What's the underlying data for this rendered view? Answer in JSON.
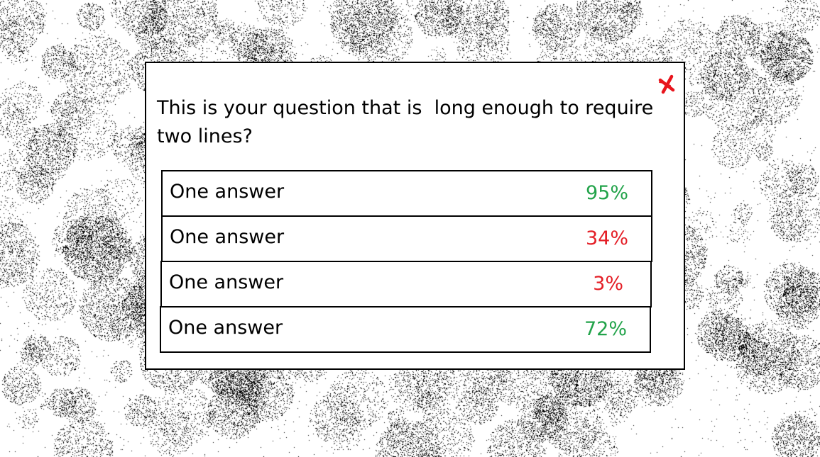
{
  "dialog": {
    "question": "This is your question that is  long enough to require\ntwo lines?",
    "close_icon": "close-x-icon",
    "close_color": "#e8141c"
  },
  "answers": [
    {
      "label": "One answer",
      "percent": "95%",
      "color": "#22a34a"
    },
    {
      "label": "One answer",
      "percent": "34%",
      "color": "#e41e26"
    },
    {
      "label": "One answer",
      "percent": "3%",
      "color": "#e41e26"
    },
    {
      "label": "One answer",
      "percent": "72%",
      "color": "#22a34a"
    }
  ]
}
